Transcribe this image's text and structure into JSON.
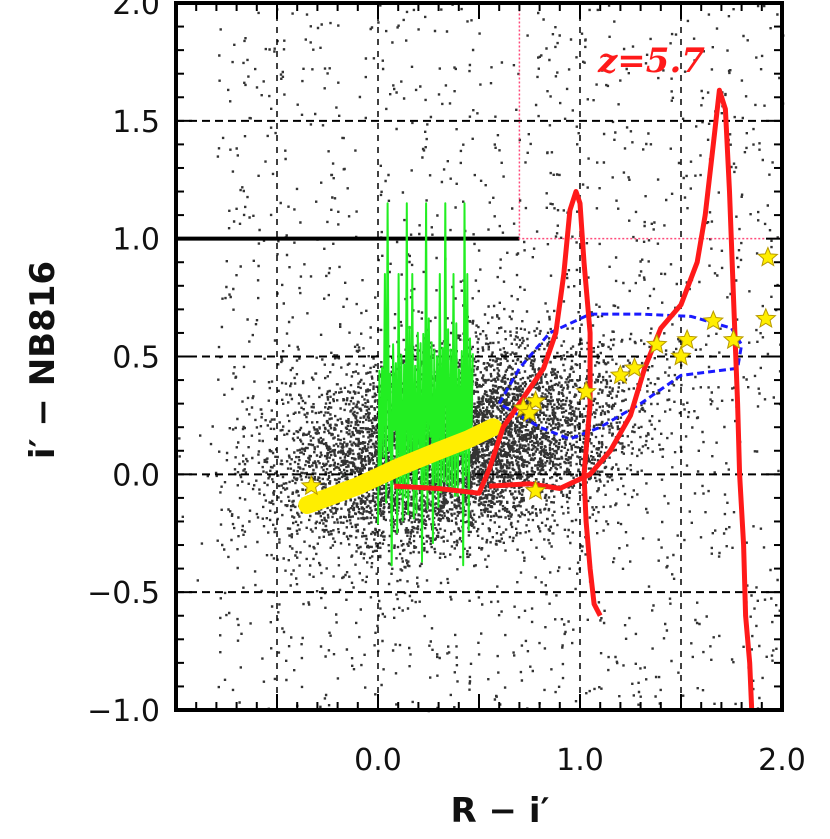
{
  "chart_data": {
    "type": "scatter",
    "title": "",
    "xlabel": "R − i′",
    "ylabel": "i′ − NB816",
    "xlim": [
      -1.0,
      2.0
    ],
    "ylim": [
      -1.0,
      2.0
    ],
    "x_ticks": [
      "0.0",
      "1.0",
      "2.0"
    ],
    "y_ticks": [
      "−1.0",
      "−0.5",
      "0.0",
      "0.5",
      "1.0",
      "1.5",
      "2.0"
    ],
    "annotation": "z=5.7",
    "selection_region": {
      "x_min": 0.7,
      "x_max": 2.0,
      "y_min": 1.0,
      "y_max": 2.0
    },
    "threshold_line": {
      "y": 1.0,
      "x_min": -1.0,
      "x_max": 0.7
    },
    "colors": {
      "field_objects": "#333333",
      "green_track": "#22ee22",
      "yellow_band": "#ffee00",
      "red_track": "#ff1a1a",
      "blue_region": "#1a1aff",
      "star_markers": "#ffee00"
    },
    "star_points": [
      {
        "x": -0.33,
        "y": -0.05
      },
      {
        "x": 0.72,
        "y": 0.28
      },
      {
        "x": 0.78,
        "y": 0.31
      },
      {
        "x": 0.75,
        "y": 0.26
      },
      {
        "x": 0.78,
        "y": -0.07
      },
      {
        "x": 1.03,
        "y": 0.35
      },
      {
        "x": 1.2,
        "y": 0.42
      },
      {
        "x": 1.27,
        "y": 0.45
      },
      {
        "x": 1.38,
        "y": 0.55
      },
      {
        "x": 1.5,
        "y": 0.5
      },
      {
        "x": 1.53,
        "y": 0.57
      },
      {
        "x": 1.66,
        "y": 0.65
      },
      {
        "x": 1.76,
        "y": 0.57
      },
      {
        "x": 1.93,
        "y": 0.92
      },
      {
        "x": 1.92,
        "y": 0.66
      }
    ],
    "yellow_band": [
      {
        "x": -0.35,
        "y": -0.13
      },
      {
        "x": -0.1,
        "y": -0.05
      },
      {
        "x": 0.1,
        "y": 0.03
      },
      {
        "x": 0.3,
        "y": 0.1
      },
      {
        "x": 0.45,
        "y": 0.15
      },
      {
        "x": 0.57,
        "y": 0.2
      }
    ],
    "red_track_1": [
      {
        "x": 0.08,
        "y": -0.05
      },
      {
        "x": 0.3,
        "y": -0.06
      },
      {
        "x": 0.5,
        "y": -0.08
      },
      {
        "x": 0.55,
        "y": 0.02
      },
      {
        "x": 0.62,
        "y": 0.2
      },
      {
        "x": 0.7,
        "y": 0.3
      },
      {
        "x": 0.82,
        "y": 0.45
      },
      {
        "x": 0.88,
        "y": 0.6
      },
      {
        "x": 0.92,
        "y": 0.85
      },
      {
        "x": 0.95,
        "y": 1.12
      },
      {
        "x": 0.98,
        "y": 1.2
      },
      {
        "x": 1.0,
        "y": 1.15
      },
      {
        "x": 1.02,
        "y": 0.9
      },
      {
        "x": 1.05,
        "y": 0.6
      },
      {
        "x": 1.05,
        "y": 0.3
      },
      {
        "x": 1.02,
        "y": 0.0
      },
      {
        "x": 1.03,
        "y": -0.2
      },
      {
        "x": 1.05,
        "y": -0.4
      },
      {
        "x": 1.07,
        "y": -0.55
      },
      {
        "x": 1.1,
        "y": -0.6
      }
    ],
    "red_track_2": [
      {
        "x": 0.55,
        "y": -0.05
      },
      {
        "x": 0.75,
        "y": -0.04
      },
      {
        "x": 0.9,
        "y": -0.06
      },
      {
        "x": 1.05,
        "y": 0.0
      },
      {
        "x": 1.15,
        "y": 0.1
      },
      {
        "x": 1.25,
        "y": 0.25
      },
      {
        "x": 1.32,
        "y": 0.45
      },
      {
        "x": 1.4,
        "y": 0.62
      },
      {
        "x": 1.5,
        "y": 0.72
      },
      {
        "x": 1.58,
        "y": 0.9
      },
      {
        "x": 1.62,
        "y": 1.1
      },
      {
        "x": 1.66,
        "y": 1.4
      },
      {
        "x": 1.69,
        "y": 1.63
      },
      {
        "x": 1.72,
        "y": 1.55
      },
      {
        "x": 1.74,
        "y": 1.2
      },
      {
        "x": 1.76,
        "y": 0.75
      },
      {
        "x": 1.78,
        "y": 0.3
      },
      {
        "x": 1.79,
        "y": 0.0
      },
      {
        "x": 1.81,
        "y": -0.3
      },
      {
        "x": 1.82,
        "y": -0.6
      },
      {
        "x": 1.84,
        "y": -0.8
      },
      {
        "x": 1.85,
        "y": -1.0
      }
    ],
    "blue_region": [
      {
        "x": 0.6,
        "y": 0.3
      },
      {
        "x": 0.7,
        "y": 0.45
      },
      {
        "x": 0.85,
        "y": 0.6
      },
      {
        "x": 1.05,
        "y": 0.68
      },
      {
        "x": 1.3,
        "y": 0.68
      },
      {
        "x": 1.55,
        "y": 0.67
      },
      {
        "x": 1.75,
        "y": 0.62
      },
      {
        "x": 1.8,
        "y": 0.55
      },
      {
        "x": 1.78,
        "y": 0.45
      },
      {
        "x": 1.5,
        "y": 0.42
      },
      {
        "x": 1.3,
        "y": 0.3
      },
      {
        "x": 1.1,
        "y": 0.2
      },
      {
        "x": 0.95,
        "y": 0.15
      },
      {
        "x": 0.8,
        "y": 0.2
      },
      {
        "x": 0.6,
        "y": 0.3
      }
    ]
  }
}
